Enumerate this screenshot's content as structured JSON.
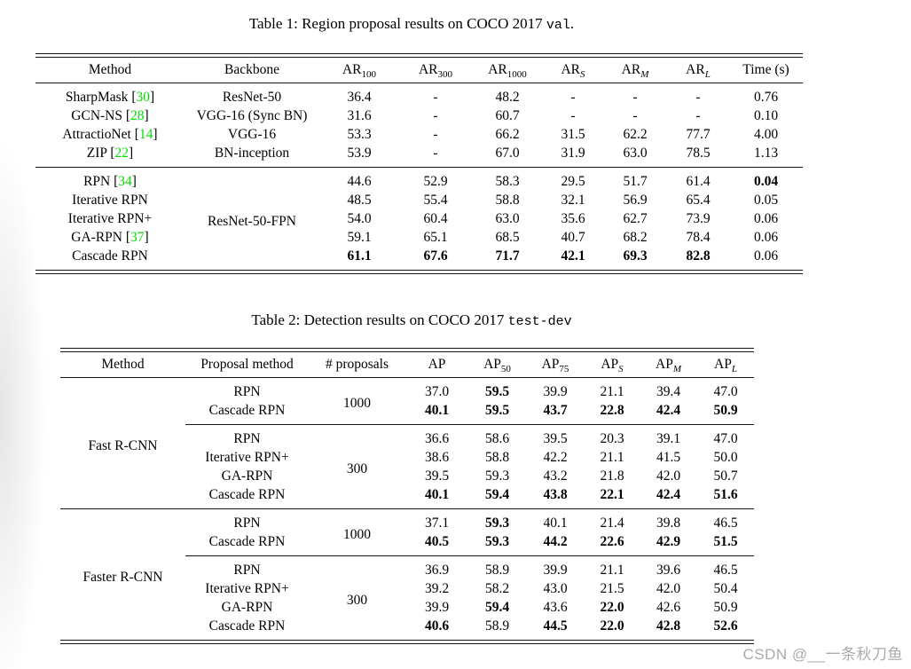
{
  "page": {
    "watermark": "CSDN @__一条秋刀鱼",
    "citation_color": "#00dd00",
    "background": "#ffffff"
  },
  "table1": {
    "caption": {
      "prefix": "Table 1: Region proposal results on COCO 2017 ",
      "mono": "val",
      "suffix": "."
    },
    "headers": [
      {
        "base": "Method"
      },
      {
        "base": "Backbone"
      },
      {
        "base": "AR",
        "sub": "100"
      },
      {
        "base": "AR",
        "sub": "300"
      },
      {
        "base": "AR",
        "sub": "1000"
      },
      {
        "base": "AR",
        "sub": "S",
        "italic_sub": true
      },
      {
        "base": "AR",
        "sub": "M",
        "italic_sub": true
      },
      {
        "base": "AR",
        "sub": "L",
        "italic_sub": true
      },
      {
        "base": "Time (s)"
      }
    ],
    "groups": [
      {
        "rows": [
          {
            "method": "SharpMask",
            "ref": "30",
            "backbone": "ResNet-50",
            "values": [
              "36.4",
              "-",
              "48.2",
              "-",
              "-",
              "-",
              "0.76"
            ],
            "bold": []
          },
          {
            "method": "GCN-NS",
            "ref": "28",
            "backbone": "VGG-16 (Sync BN)",
            "values": [
              "31.6",
              "-",
              "60.7",
              "-",
              "-",
              "-",
              "0.10"
            ],
            "bold": []
          },
          {
            "method": "AttractioNet",
            "ref": "14",
            "backbone": "VGG-16",
            "values": [
              "53.3",
              "-",
              "66.2",
              "31.5",
              "62.2",
              "77.7",
              "4.00"
            ],
            "bold": []
          },
          {
            "method": "ZIP",
            "ref": "22",
            "backbone": "BN-inception",
            "values": [
              "53.9",
              "-",
              "67.0",
              "31.9",
              "63.0",
              "78.5",
              "1.13"
            ],
            "bold": []
          }
        ]
      },
      {
        "backbone_span": "ResNet-50-FPN",
        "rows": [
          {
            "method": "RPN",
            "ref": "34",
            "values": [
              "44.6",
              "52.9",
              "58.3",
              "29.5",
              "51.7",
              "61.4",
              "0.04"
            ],
            "bold": [
              6
            ]
          },
          {
            "method": "Iterative RPN",
            "values": [
              "48.5",
              "55.4",
              "58.8",
              "32.1",
              "56.9",
              "65.4",
              "0.05"
            ],
            "bold": []
          },
          {
            "method": "Iterative RPN+",
            "values": [
              "54.0",
              "60.4",
              "63.0",
              "35.6",
              "62.7",
              "73.9",
              "0.06"
            ],
            "bold": []
          },
          {
            "method": "GA-RPN",
            "ref": "37",
            "values": [
              "59.1",
              "65.1",
              "68.5",
              "40.7",
              "68.2",
              "78.4",
              "0.06"
            ],
            "bold": []
          },
          {
            "method": "Cascade RPN",
            "values": [
              "61.1",
              "67.6",
              "71.7",
              "42.1",
              "69.3",
              "82.8",
              "0.06"
            ],
            "bold": [
              0,
              1,
              2,
              3,
              4,
              5
            ]
          }
        ]
      }
    ]
  },
  "table2": {
    "caption": {
      "prefix": "Table 2: Detection results on COCO 2017 ",
      "mono": "test-dev",
      "suffix": ""
    },
    "headers": [
      {
        "base": "Method"
      },
      {
        "base": "Proposal method"
      },
      {
        "base": "# proposals"
      },
      {
        "base": "AP"
      },
      {
        "base": "AP",
        "sub": "50"
      },
      {
        "base": "AP",
        "sub": "75"
      },
      {
        "base": "AP",
        "sub": "S",
        "italic_sub": true
      },
      {
        "base": "AP",
        "sub": "M",
        "italic_sub": true
      },
      {
        "base": "AP",
        "sub": "L",
        "italic_sub": true
      }
    ],
    "sections": [
      {
        "method": "Fast R-CNN",
        "subgroups": [
          {
            "proposals": "1000",
            "rows": [
              {
                "proposal": "RPN",
                "values": [
                  "37.0",
                  "59.5",
                  "39.9",
                  "21.1",
                  "39.4",
                  "47.0"
                ],
                "bold": [
                  1
                ]
              },
              {
                "proposal": "Cascade RPN",
                "values": [
                  "40.1",
                  "59.5",
                  "43.7",
                  "22.8",
                  "42.4",
                  "50.9"
                ],
                "bold": [
                  0,
                  1,
                  2,
                  3,
                  4,
                  5
                ]
              }
            ]
          },
          {
            "proposals": "300",
            "rows": [
              {
                "proposal": "RPN",
                "values": [
                  "36.6",
                  "58.6",
                  "39.5",
                  "20.3",
                  "39.1",
                  "47.0"
                ],
                "bold": []
              },
              {
                "proposal": "Iterative RPN+",
                "values": [
                  "38.6",
                  "58.8",
                  "42.2",
                  "21.1",
                  "41.5",
                  "50.0"
                ],
                "bold": []
              },
              {
                "proposal": "GA-RPN",
                "values": [
                  "39.5",
                  "59.3",
                  "43.2",
                  "21.8",
                  "42.0",
                  "50.7"
                ],
                "bold": []
              },
              {
                "proposal": "Cascade RPN",
                "values": [
                  "40.1",
                  "59.4",
                  "43.8",
                  "22.1",
                  "42.4",
                  "51.6"
                ],
                "bold": [
                  0,
                  1,
                  2,
                  3,
                  4,
                  5
                ]
              }
            ]
          }
        ]
      },
      {
        "method": "Faster R-CNN",
        "subgroups": [
          {
            "proposals": "1000",
            "rows": [
              {
                "proposal": "RPN",
                "values": [
                  "37.1",
                  "59.3",
                  "40.1",
                  "21.4",
                  "39.8",
                  "46.5"
                ],
                "bold": [
                  1
                ]
              },
              {
                "proposal": "Cascade RPN",
                "values": [
                  "40.5",
                  "59.3",
                  "44.2",
                  "22.6",
                  "42.9",
                  "51.5"
                ],
                "bold": [
                  0,
                  1,
                  2,
                  3,
                  4,
                  5
                ]
              }
            ]
          },
          {
            "proposals": "300",
            "rows": [
              {
                "proposal": "RPN",
                "values": [
                  "36.9",
                  "58.9",
                  "39.9",
                  "21.1",
                  "39.6",
                  "46.5"
                ],
                "bold": []
              },
              {
                "proposal": "Iterative RPN+",
                "values": [
                  "39.2",
                  "58.2",
                  "43.0",
                  "21.5",
                  "42.0",
                  "50.4"
                ],
                "bold": []
              },
              {
                "proposal": "GA-RPN",
                "values": [
                  "39.9",
                  "59.4",
                  "43.6",
                  "22.0",
                  "42.6",
                  "50.9"
                ],
                "bold": [
                  1,
                  3
                ]
              },
              {
                "proposal": "Cascade RPN",
                "values": [
                  "40.6",
                  "58.9",
                  "44.5",
                  "22.0",
                  "42.8",
                  "52.6"
                ],
                "bold": [
                  0,
                  2,
                  3,
                  4,
                  5
                ]
              }
            ]
          }
        ]
      }
    ]
  }
}
